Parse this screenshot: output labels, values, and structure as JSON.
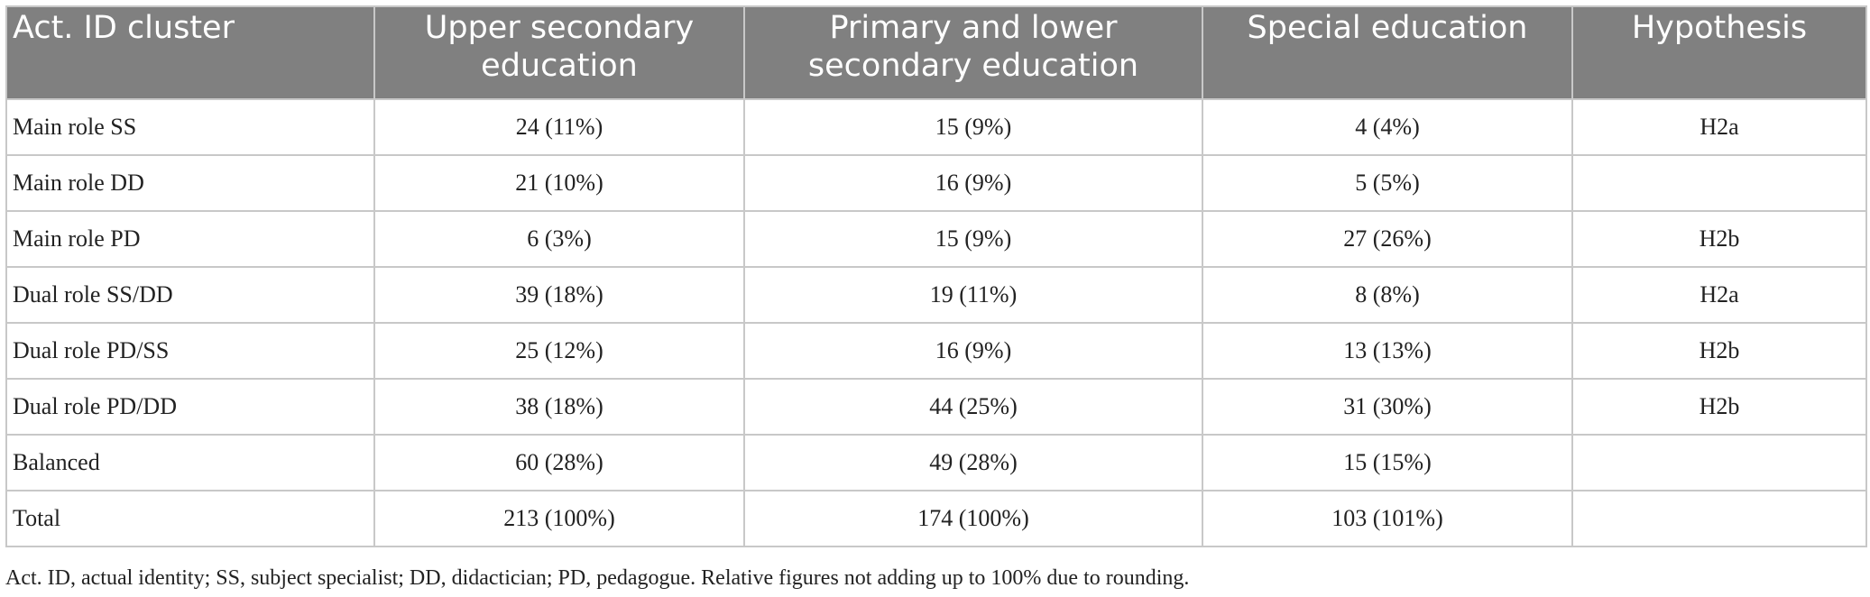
{
  "table": {
    "headers": [
      "Act. ID cluster",
      "Upper secondary education",
      "Primary and lower secondary education",
      "Special education",
      "Hypothesis"
    ],
    "rows": [
      [
        "Main role SS",
        "24 (11%)",
        "15 (9%)",
        "4 (4%)",
        "H2a"
      ],
      [
        "Main role DD",
        "21 (10%)",
        "16 (9%)",
        "5 (5%)",
        ""
      ],
      [
        "Main role PD",
        "6 (3%)",
        "15 (9%)",
        "27 (26%)",
        "H2b"
      ],
      [
        "Dual role SS/DD",
        "39 (18%)",
        "19 (11%)",
        "8 (8%)",
        "H2a"
      ],
      [
        "Dual role PD/SS",
        "25 (12%)",
        "16 (9%)",
        "13 (13%)",
        "H2b"
      ],
      [
        "Dual role PD/DD",
        "38 (18%)",
        "44 (25%)",
        "31 (30%)",
        "H2b"
      ],
      [
        "Balanced",
        "60 (28%)",
        "49 (28%)",
        "15 (15%)",
        ""
      ],
      [
        "Total",
        "213 (100%)",
        "174 (100%)",
        "103 (101%)",
        ""
      ]
    ]
  },
  "footnote": "Act. ID, actual identity; SS, subject specialist; DD, didactician; PD, pedagogue. Relative figures not adding up to 100% due to rounding.",
  "colors": {
    "header_background": "#808080",
    "header_text": "#ffffff",
    "grid_lines": "#c8c8c8",
    "body_text": "#222222"
  }
}
